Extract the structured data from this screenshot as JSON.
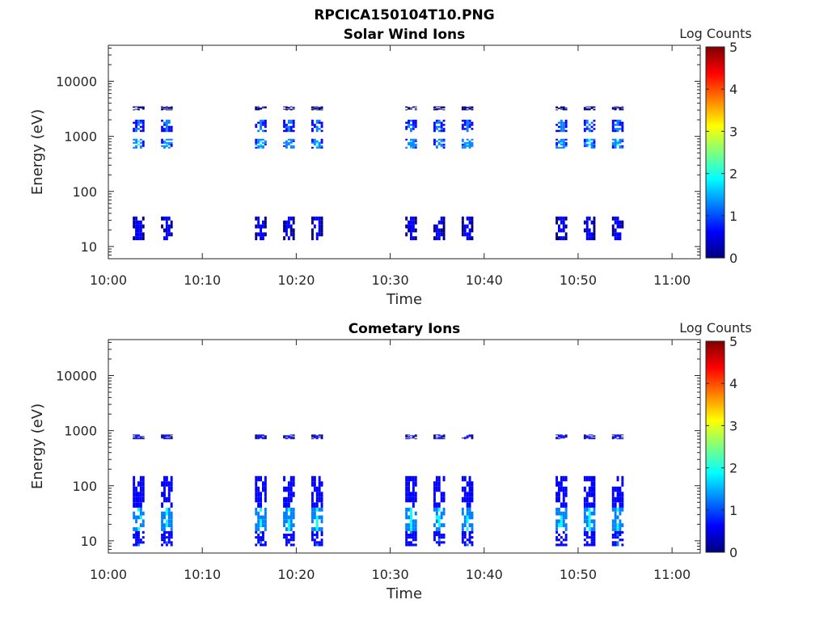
{
  "figure_title": "RPCICA150104T10.PNG",
  "colormap": [
    "#00007f",
    "#0000ff",
    "#007fff",
    "#00ffff",
    "#7fff7f",
    "#ffff00",
    "#ff7f00",
    "#ff0000",
    "#7f0000"
  ],
  "chart_data": [
    {
      "type": "heatmap",
      "title": "Solar Wind Ions",
      "xlabel": "Time",
      "ylabel": "Energy (eV)",
      "x_ticks": [
        "10:00",
        "10:10",
        "10:20",
        "10:30",
        "10:40",
        "10:50",
        "11:00"
      ],
      "x_range": [
        "10:00",
        "11:03"
      ],
      "y_scale": "log",
      "y_ticks": [
        "10",
        "100",
        "1000",
        "10000"
      ],
      "y_range": [
        6,
        45000
      ],
      "colorbar": {
        "label": "Log Counts",
        "ticks": [
          "0",
          "1",
          "2",
          "3",
          "4",
          "5"
        ],
        "range": [
          0,
          5
        ]
      },
      "grid": false,
      "scan_times": [
        "10:03",
        "10:06",
        "10:16",
        "10:19",
        "10:22",
        "10:32",
        "10:35",
        "10:38",
        "10:48",
        "10:51",
        "10:54"
      ],
      "beams": [
        {
          "energy_range": [
            600,
            900
          ],
          "peak_log_counts": 1.8
        },
        {
          "energy_range": [
            1200,
            2000
          ],
          "peak_log_counts": 1.3
        },
        {
          "energy_range": [
            3000,
            3500
          ],
          "peak_log_counts": 0.3
        },
        {
          "energy_range": [
            13,
            35
          ],
          "peak_log_counts": 0.5
        }
      ]
    },
    {
      "type": "heatmap",
      "title": "Cometary Ions",
      "xlabel": "Time",
      "ylabel": "Energy (eV)",
      "x_ticks": [
        "10:00",
        "10:10",
        "10:20",
        "10:30",
        "10:40",
        "10:50",
        "11:00"
      ],
      "x_range": [
        "10:00",
        "11:03"
      ],
      "y_scale": "log",
      "y_ticks": [
        "10",
        "100",
        "1000",
        "10000"
      ],
      "y_range": [
        6,
        45000
      ],
      "colorbar": {
        "label": "Log Counts",
        "ticks": [
          "0",
          "1",
          "2",
          "3",
          "4",
          "5"
        ],
        "range": [
          0,
          5
        ]
      },
      "grid": false,
      "scan_times": [
        "10:03",
        "10:06",
        "10:16",
        "10:19",
        "10:22",
        "10:32",
        "10:35",
        "10:38",
        "10:48",
        "10:51",
        "10:54"
      ],
      "beams": [
        {
          "energy_range": [
            700,
            850
          ],
          "peak_log_counts": 0.5
        },
        {
          "energy_range": [
            40,
            150
          ],
          "peak_log_counts": 0.8
        },
        {
          "energy_range": [
            15,
            40
          ],
          "peak_log_counts": 2.0
        },
        {
          "energy_range": [
            8,
            15
          ],
          "peak_log_counts": 1.0
        }
      ]
    }
  ]
}
